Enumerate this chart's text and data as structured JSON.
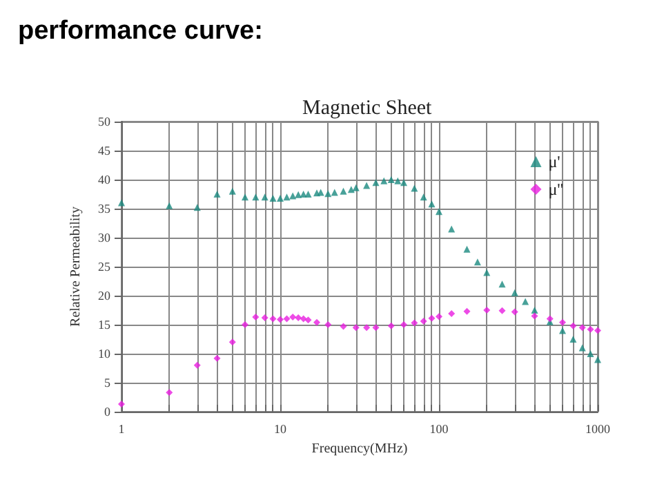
{
  "chart_data": {
    "type": "scatter",
    "title": "performance curve:",
    "subtitle": "Magnetic Sheet",
    "xlabel": "Frequency(MHz)",
    "ylabel": "Relative Permeability",
    "log": "x",
    "xlim": [
      1,
      1000
    ],
    "xticks": [
      1,
      {
        "value": 2,
        "label": null
      },
      {
        "value": 3,
        "label": null
      },
      {
        "value": 4,
        "label": null
      },
      {
        "value": 5,
        "label": null
      },
      {
        "value": 6,
        "label": null
      },
      {
        "value": 7,
        "label": null
      },
      {
        "value": 8,
        "label": null
      },
      {
        "value": 9,
        "label": null
      },
      10,
      {
        "value": 20,
        "label": null
      },
      {
        "value": 30,
        "label": null
      },
      {
        "value": 40,
        "label": null
      },
      {
        "value": 50,
        "label": null
      },
      {
        "value": 60,
        "label": null
      },
      {
        "value": 70,
        "label": null
      },
      {
        "value": 80,
        "label": null
      },
      {
        "value": 90,
        "label": null
      },
      100,
      {
        "value": 200,
        "label": null
      },
      {
        "value": 300,
        "label": null
      },
      {
        "value": 400,
        "label": null
      },
      {
        "value": 500,
        "label": null
      },
      {
        "value": 600,
        "label": null
      },
      {
        "value": 700,
        "label": null
      },
      {
        "value": 800,
        "label": null
      },
      {
        "value": 900,
        "label": null
      },
      1000
    ],
    "ylim": [
      0,
      50
    ],
    "yticks": [
      0,
      5,
      10,
      15,
      20,
      25,
      30,
      35,
      40,
      45,
      50
    ],
    "grid": true,
    "legend": "top right",
    "series": [
      {
        "name": "μ'",
        "color": "#1a8a80",
        "marker": "triangle",
        "x": [
          1,
          2,
          3,
          4,
          5,
          6,
          7,
          8,
          9,
          10,
          11,
          12,
          13,
          14,
          15,
          17,
          18,
          20,
          22,
          25,
          28,
          30,
          35,
          40,
          45,
          50,
          55,
          60,
          70,
          80,
          90,
          100,
          120,
          150,
          175,
          200,
          250,
          300,
          350,
          400,
          500,
          600,
          700,
          800,
          900,
          1000
        ],
        "values": [
          36,
          35.5,
          35.2,
          37.5,
          38,
          37,
          37,
          37,
          36.8,
          36.8,
          37,
          37.2,
          37.4,
          37.5,
          37.5,
          37.7,
          37.8,
          37.6,
          37.8,
          38,
          38.3,
          38.6,
          39,
          39.5,
          39.8,
          40,
          39.8,
          39.5,
          38.5,
          37,
          35.8,
          34.5,
          31.5,
          28,
          25.8,
          24,
          22,
          20.5,
          19,
          17.5,
          15.5,
          14,
          12.5,
          11,
          10,
          9
        ]
      },
      {
        "name": "μ''",
        "color": "#e81ee0",
        "marker": "diamond",
        "x": [
          1,
          2,
          3,
          4,
          5,
          6,
          7,
          8,
          9,
          10,
          11,
          12,
          13,
          14,
          15,
          17,
          20,
          25,
          30,
          35,
          40,
          50,
          60,
          70,
          80,
          90,
          100,
          120,
          150,
          200,
          250,
          300,
          400,
          500,
          600,
          700,
          800,
          900,
          1000
        ],
        "values": [
          1.3,
          3.3,
          8,
          9.2,
          12,
          15,
          16.3,
          16.2,
          16,
          15.9,
          16,
          16.3,
          16.2,
          16,
          15.8,
          15.4,
          15,
          14.7,
          14.5,
          14.5,
          14.5,
          14.8,
          15,
          15.3,
          15.6,
          16.1,
          16.4,
          16.9,
          17.3,
          17.5,
          17.4,
          17.2,
          16.5,
          16,
          15.4,
          14.8,
          14.5,
          14.2,
          14
        ]
      }
    ]
  }
}
